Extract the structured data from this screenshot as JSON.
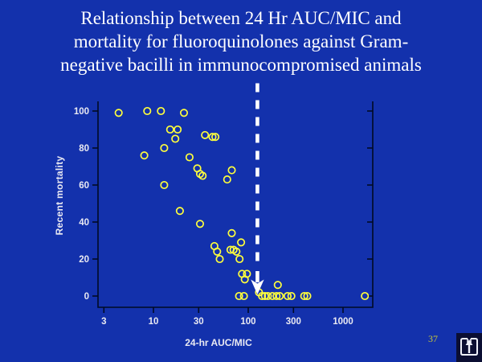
{
  "slide": {
    "title_lines": [
      "Relationship between 24 Hr AUC/MIC and",
      "mortality for fluoroquinolones against Gram-",
      "negative bacilli in immunocompromised animals"
    ],
    "page_number": "37",
    "footer_icon": "action-button-return-icon"
  },
  "chart_data": {
    "type": "scatter",
    "title": "Relationship between 24 Hr AUC/MIC and mortality for fluoroquinolones against Gram-negative bacilli in immunocompromised animals",
    "xlabel": "24-hr AUC/MIC",
    "ylabel": "Recent mortality",
    "x_scale": "log",
    "x_ticks": [
      3,
      10,
      30,
      100,
      300,
      1000
    ],
    "y_ticks": [
      0,
      20,
      40,
      60,
      80,
      100
    ],
    "x_range": [
      2.4,
      2100
    ],
    "ylim": [
      -6,
      105
    ],
    "grid": "off",
    "legend": "none",
    "marker": {
      "shape": "open-circle",
      "color": "#ffff3c"
    },
    "points": [
      [
        4.3,
        99
      ],
      [
        8.6,
        100
      ],
      [
        12,
        100
      ],
      [
        21,
        99
      ],
      [
        15,
        90
      ],
      [
        18,
        90
      ],
      [
        17,
        85
      ],
      [
        35,
        87
      ],
      [
        42,
        86
      ],
      [
        45,
        86
      ],
      [
        13,
        80
      ],
      [
        8,
        76
      ],
      [
        24,
        75
      ],
      [
        29,
        69
      ],
      [
        31,
        66
      ],
      [
        33,
        65
      ],
      [
        67,
        68
      ],
      [
        60,
        63
      ],
      [
        13,
        60
      ],
      [
        19,
        46
      ],
      [
        31,
        39
      ],
      [
        67,
        34
      ],
      [
        84,
        29
      ],
      [
        44,
        27
      ],
      [
        47,
        24
      ],
      [
        50,
        20
      ],
      [
        65,
        25
      ],
      [
        70,
        25
      ],
      [
        75,
        24
      ],
      [
        81,
        20
      ],
      [
        86,
        12
      ],
      [
        97,
        12
      ],
      [
        92,
        9
      ],
      [
        130,
        2
      ],
      [
        205,
        6
      ],
      [
        80,
        0
      ],
      [
        90,
        0
      ],
      [
        140,
        0
      ],
      [
        150,
        0
      ],
      [
        161,
        0
      ],
      [
        180,
        0
      ],
      [
        199,
        0
      ],
      [
        215,
        0
      ],
      [
        260,
        0
      ],
      [
        285,
        0
      ],
      [
        390,
        0
      ],
      [
        420,
        0
      ],
      [
        1700,
        0
      ]
    ],
    "annotation": {
      "type": "dashed-vertical-line-with-down-arrow",
      "x_value": 125,
      "color": "#ffffff"
    }
  },
  "colors": {
    "background": "#1331ac",
    "title_text": "#ffffff",
    "axis": "#000a24",
    "tick_label": "#e9e9f2",
    "marker": "#ffff3c",
    "annotation": "#ffffff",
    "page_number": "#c8c838",
    "icon_bg": "#0b0e33",
    "icon_fg": "#eef0fa"
  }
}
